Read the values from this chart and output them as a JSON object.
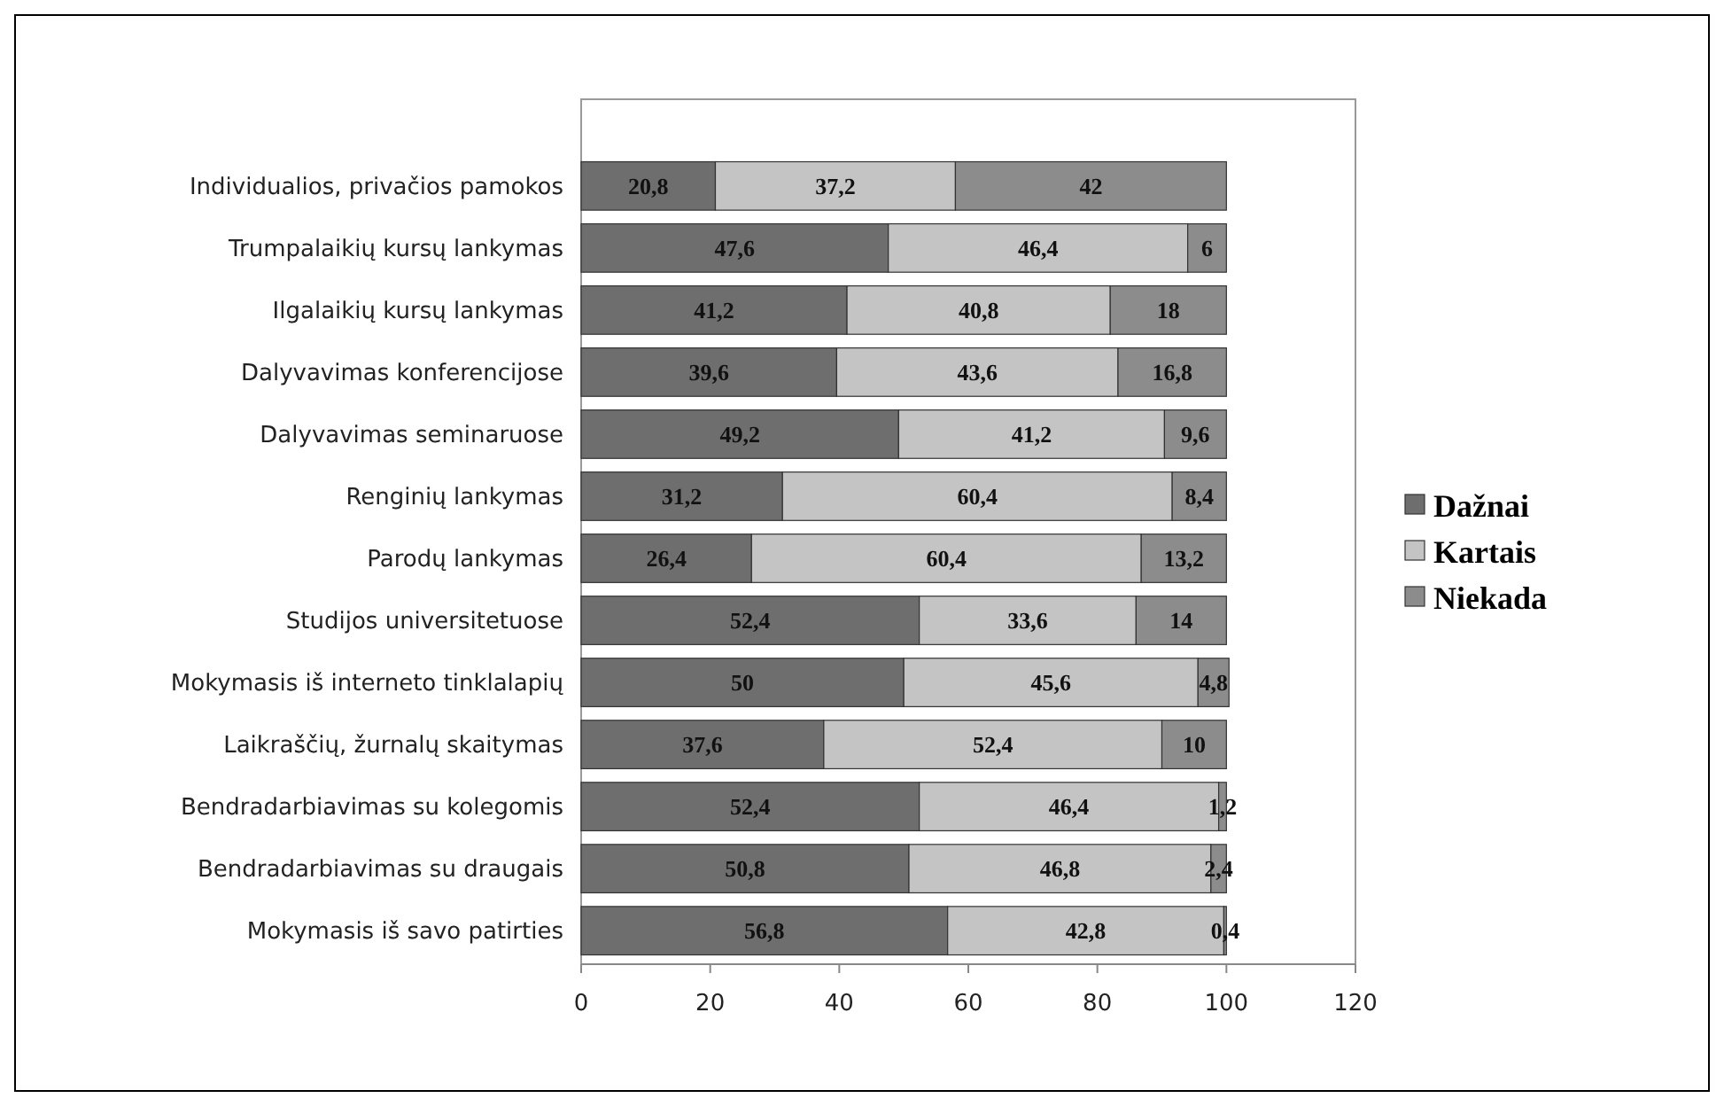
{
  "chart_data": {
    "type": "bar",
    "orientation": "horizontal",
    "stacked": true,
    "categories": [
      "Individualios, privačios pamokos",
      "Trumpalaikių kursų lankymas",
      "Ilgalaikių kursų lankymas",
      "Dalyvavimas konferencijose",
      "Dalyvavimas seminaruose",
      "Renginių lankymas",
      "Parodų lankymas",
      "Studijos universitetuose",
      "Mokymasis iš interneto tinklalapių",
      "Laikraščių, žurnalų skaitymas",
      "Bendradarbiavimas su kolegomis",
      "Bendradarbiavimas su draugais",
      "Mokymasis iš savo patirties"
    ],
    "series": [
      {
        "name": "Dažnai",
        "color": "#6e6e6e",
        "values": [
          20.8,
          47.6,
          41.2,
          39.6,
          49.2,
          31.2,
          26.4,
          52.4,
          50,
          37.6,
          52.4,
          50.8,
          56.8
        ],
        "value_labels": [
          "20,8",
          "47,6",
          "41,2",
          "39,6",
          "49,2",
          "31,2",
          "26,4",
          "52,4",
          "50",
          "37,6",
          "52,4",
          "50,8",
          "56,8"
        ]
      },
      {
        "name": "Kartais",
        "color": "#c4c4c4",
        "values": [
          37.2,
          46.4,
          40.8,
          43.6,
          41.2,
          60.4,
          60.4,
          33.6,
          45.6,
          52.4,
          46.4,
          46.8,
          42.8
        ],
        "value_labels": [
          "37,2",
          "46,4",
          "40,8",
          "43,6",
          "41,2",
          "60,4",
          "60,4",
          "33,6",
          "45,6",
          "52,4",
          "46,4",
          "46,8",
          "42,8"
        ]
      },
      {
        "name": "Niekada",
        "color": "#8c8c8c",
        "values": [
          42,
          6,
          18,
          16.8,
          9.6,
          8.4,
          13.2,
          14,
          4.8,
          10,
          1.2,
          2.4,
          0.4
        ],
        "value_labels": [
          "42",
          "6",
          "18",
          "16,8",
          "9,6",
          "8,4",
          "13,2",
          "14",
          "4,8",
          "10",
          "1,2",
          "2,4",
          "0,4"
        ]
      }
    ],
    "xlim": [
      0,
      120
    ],
    "xticks": [
      0,
      20,
      40,
      60,
      80,
      100,
      120
    ],
    "grid": false,
    "legend": "right"
  }
}
